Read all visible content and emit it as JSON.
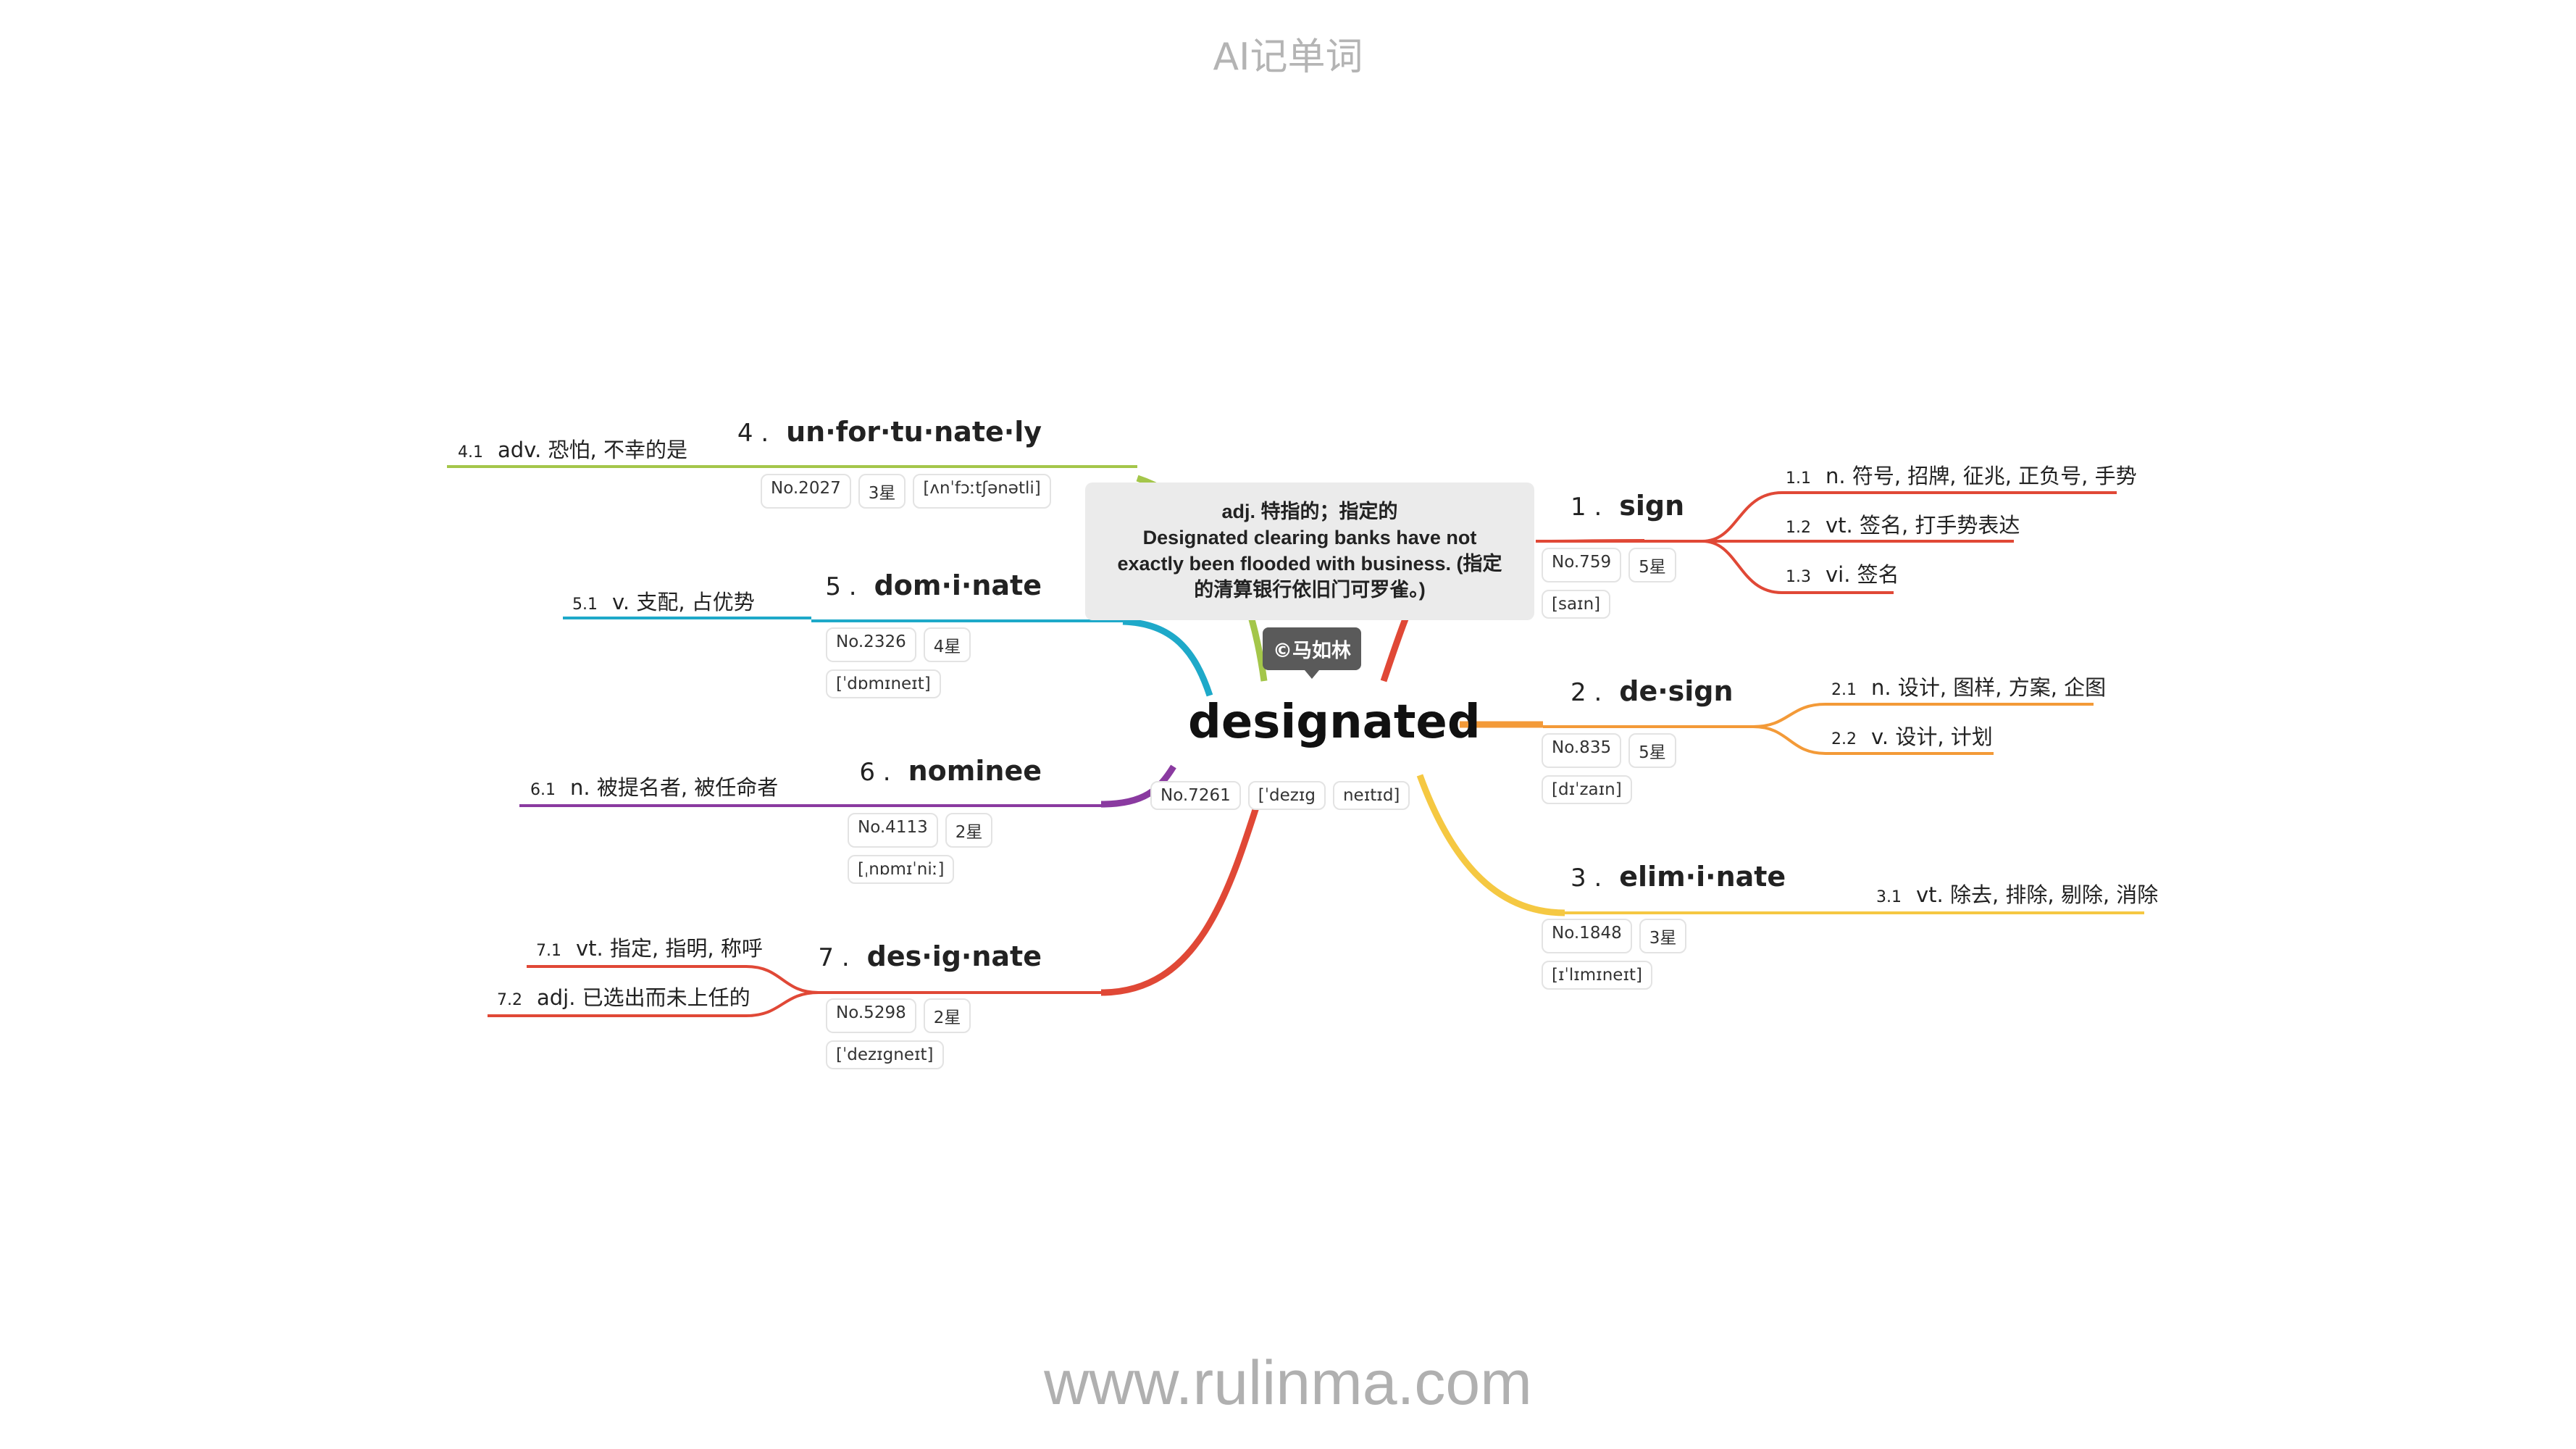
{
  "header": {
    "title": "AI记单词"
  },
  "footer": {
    "url": "www.rulinma.com"
  },
  "center": {
    "word": "designated",
    "tags": [
      "No.7261",
      "[ˈdezɪg",
      "neɪtɪd]"
    ],
    "callout": {
      "line1": "adj. 特指的；指定的",
      "line2": "Designated clearing banks have not",
      "line3": "exactly been flooded with business. (指定",
      "line4": "的清算银行依旧门可罗雀。)"
    },
    "author": "©马如林"
  },
  "branches": [
    {
      "num": "1 .",
      "word": "sign",
      "color": "#e04836",
      "tags": {
        "no": "No.759",
        "stars": "5星",
        "ipa": "[saɪn]"
      },
      "defs": [
        {
          "idx": "1.1",
          "text": "n. 符号, 招牌, 征兆, 正负号, 手势"
        },
        {
          "idx": "1.2",
          "text": "vt. 签名, 打手势表达"
        },
        {
          "idx": "1.3",
          "text": "vi. 签名"
        }
      ]
    },
    {
      "num": "2 .",
      "word": "de·sign",
      "color": "#f39a38",
      "tags": {
        "no": "No.835",
        "stars": "5星",
        "ipa": "[dɪˈzaɪn]"
      },
      "defs": [
        {
          "idx": "2.1",
          "text": "n. 设计, 图样, 方案, 企图"
        },
        {
          "idx": "2.2",
          "text": "v. 设计, 计划"
        }
      ]
    },
    {
      "num": "3 .",
      "word": "elim·i·nate",
      "color": "#f5c842",
      "tags": {
        "no": "No.1848",
        "stars": "3星",
        "ipa": "[ɪˈlɪmɪneɪt]"
      },
      "defs": [
        {
          "idx": "3.1",
          "text": "vt. 除去, 排除, 剔除, 消除"
        }
      ]
    },
    {
      "num": "4 .",
      "word": "un·for·tu·nate·ly",
      "color": "#a4c64a",
      "tags": {
        "no": "No.2027",
        "stars": "3星",
        "ipa": "[ʌnˈfɔːtʃənətli]"
      },
      "defs": [
        {
          "idx": "4.1",
          "text": "adv. 恐怕, 不幸的是"
        }
      ]
    },
    {
      "num": "5 .",
      "word": "dom·i·nate",
      "color": "#1ea9c9",
      "tags": {
        "no": "No.2326",
        "stars": "4星",
        "ipa": "[ˈdɒmɪneɪt]"
      },
      "defs": [
        {
          "idx": "5.1",
          "text": "v. 支配, 占优势"
        }
      ]
    },
    {
      "num": "6 .",
      "word": "nominee",
      "color": "#8a3aa0",
      "tags": {
        "no": "No.4113",
        "stars": "2星",
        "ipa": "[ˌnɒmɪˈniː]"
      },
      "defs": [
        {
          "idx": "6.1",
          "text": "n. 被提名者, 被任命者"
        }
      ]
    },
    {
      "num": "7 .",
      "word": "des·ig·nate",
      "color": "#e04836",
      "tags": {
        "no": "No.5298",
        "stars": "2星",
        "ipa": "[ˈdezɪgneɪt]"
      },
      "defs": [
        {
          "idx": "7.1",
          "text": "vt. 指定, 指明, 称呼"
        },
        {
          "idx": "7.2",
          "text": "adj. 已选出而未上任的"
        }
      ]
    }
  ]
}
